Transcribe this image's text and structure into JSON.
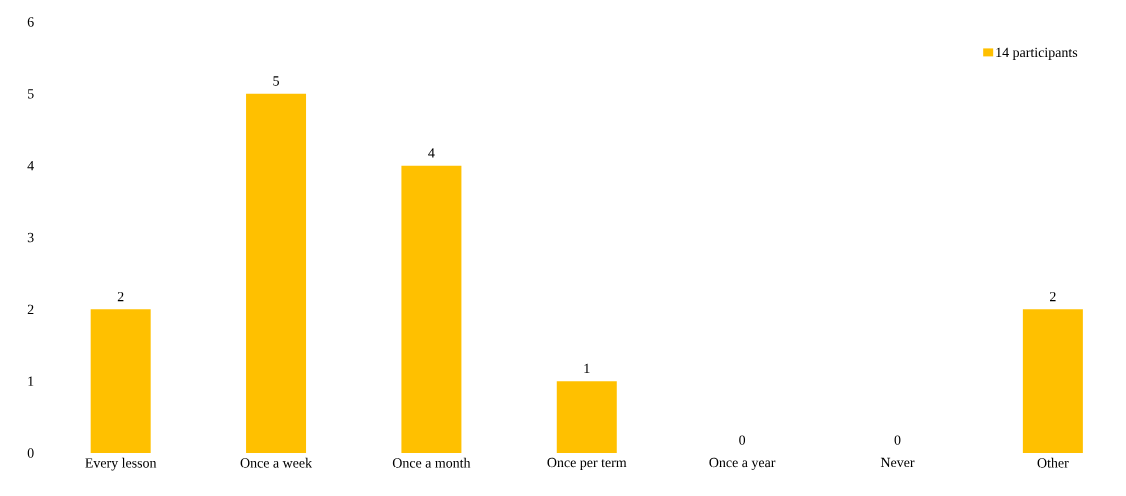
{
  "chart_data": {
    "type": "bar",
    "categories": [
      "Every lesson",
      "Once a week",
      "Once a month",
      "Once per term",
      "Once a year",
      "Never",
      "Other"
    ],
    "series": [
      {
        "name": "14 participants",
        "color": "#ffc000",
        "values": [
          2,
          5,
          4,
          1,
          0,
          0,
          2
        ]
      }
    ],
    "ylim": [
      0,
      6
    ],
    "yticks": [
      0,
      1,
      2,
      3,
      4,
      5,
      6
    ],
    "data_labels": true,
    "legend": "top right",
    "grid": false
  }
}
